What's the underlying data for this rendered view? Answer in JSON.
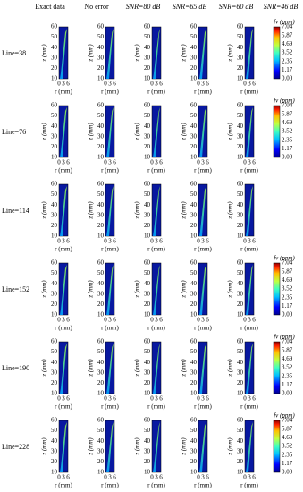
{
  "columns": [
    "Exact data",
    "No error",
    "SNR=80 dB",
    "SNR=65 dB",
    "SNR=60 dB",
    "SNR=46 dB"
  ],
  "rows": [
    {
      "label": "Line=38",
      "colorbar": true
    },
    {
      "label": "Line=76",
      "colorbar": true
    },
    {
      "label": "Line=114",
      "colorbar": false
    },
    {
      "label": "Line=152",
      "colorbar": true
    },
    {
      "label": "Line=190",
      "colorbar": true
    },
    {
      "label": "Line=228",
      "colorbar": true
    }
  ],
  "axes": {
    "z_label": "z (mm)",
    "r_label": "r (mm)",
    "zticks": [
      "60",
      "50",
      "40",
      "30",
      "20",
      "10"
    ],
    "rticks": [
      "0",
      "3",
      "6"
    ]
  },
  "colorbar": {
    "title": "fv (ppm)",
    "ticks": [
      "7.04",
      "5.87",
      "4.69",
      "3.52",
      "2.35",
      "1.17",
      "0.00"
    ]
  }
}
